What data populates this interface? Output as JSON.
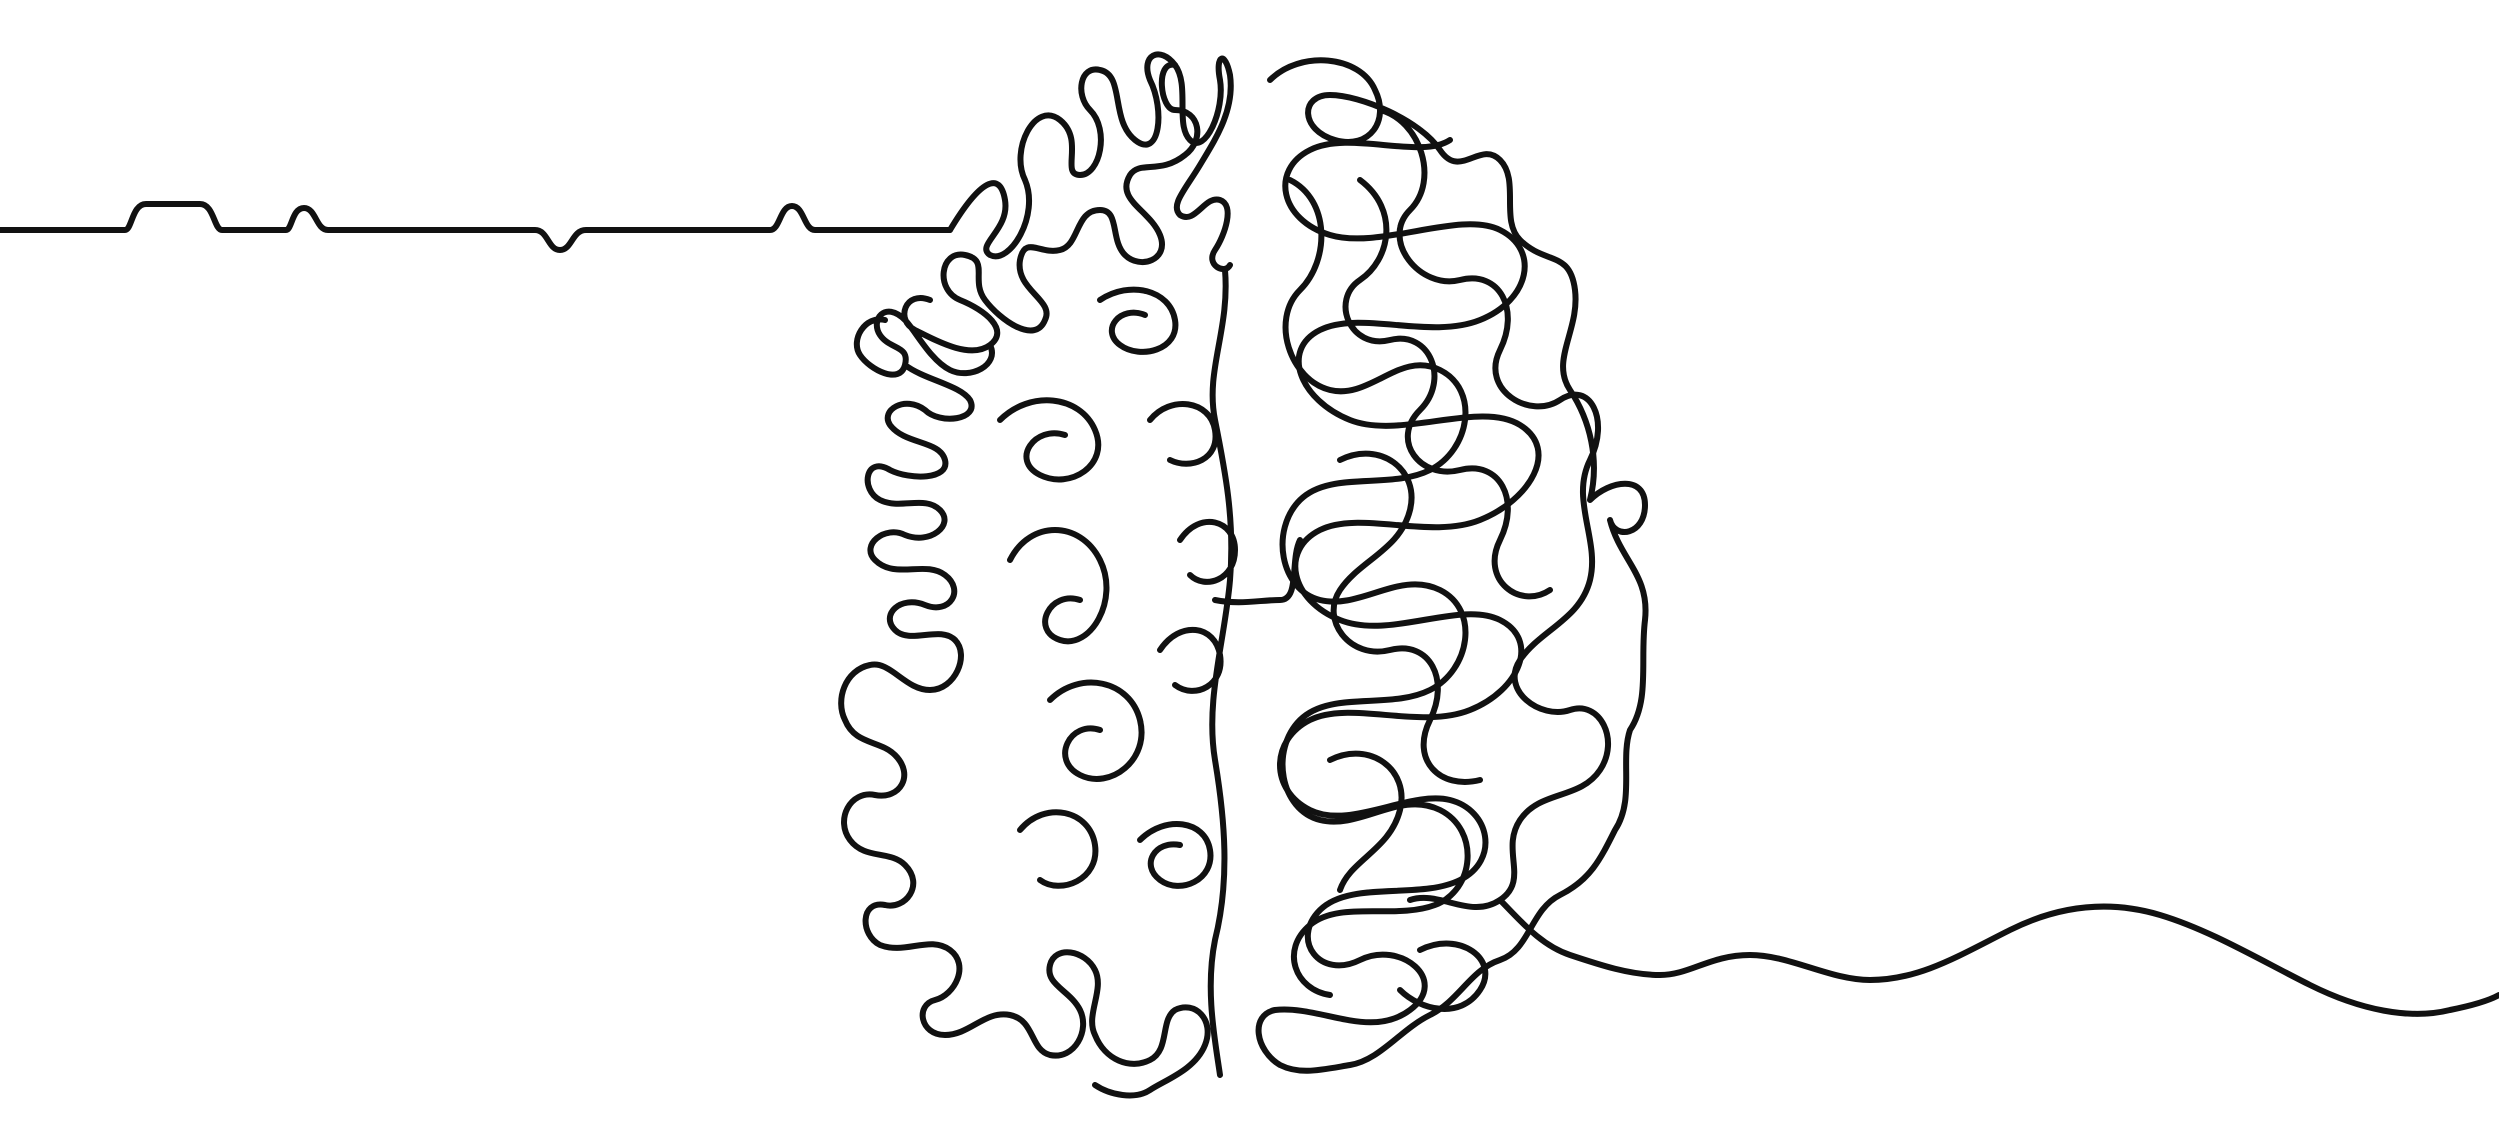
{
  "illustration": {
    "subject": "brain-hemispheres-line-art",
    "left_hemisphere": "organized-folds",
    "right_hemisphere": "tangled-scribble"
  },
  "colors": {
    "background": "#ffffff",
    "line": "#111111"
  }
}
